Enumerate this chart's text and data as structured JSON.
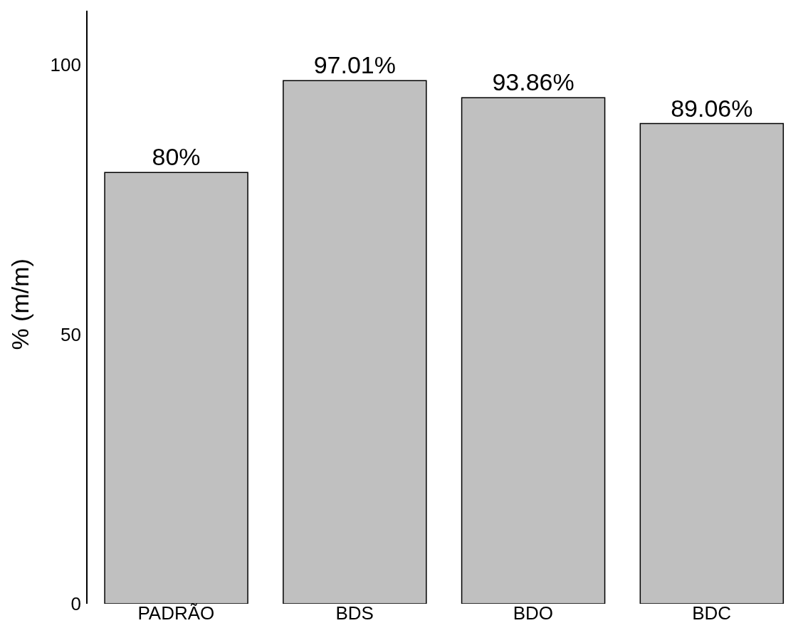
{
  "chart_data": {
    "type": "bar",
    "ylabel": "% (m/m)",
    "categories": [
      "PADRÃO",
      "BDS",
      "BDO",
      "BDC"
    ],
    "values": [
      80,
      97.01,
      93.86,
      89.06
    ],
    "value_labels": [
      "80%",
      "97.01%",
      "93.86%",
      "89.06%"
    ],
    "color": "#c0c0c0",
    "ylim": [
      0,
      110
    ],
    "yticks": [
      0,
      50,
      100
    ],
    "grid": false,
    "legend": false
  }
}
